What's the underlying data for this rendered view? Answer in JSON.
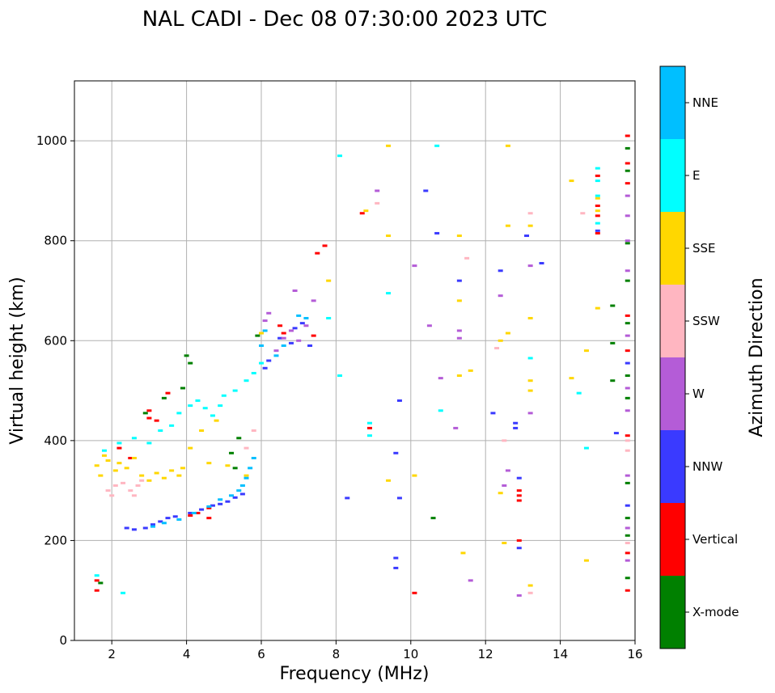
{
  "chart_data": {
    "type": "scatter",
    "title": "NAL CADI - Dec 08 07:30:00 2023 UTC",
    "xlabel": "Frequency (MHz)",
    "ylabel": "Virtual height (km)",
    "xlim": [
      1,
      16
    ],
    "ylim": [
      0,
      1120
    ],
    "xticks": [
      2,
      4,
      6,
      8,
      10,
      12,
      14,
      16
    ],
    "yticks": [
      0,
      200,
      400,
      600,
      800,
      1000
    ],
    "grid": true,
    "colorbar": {
      "label": "Azimuth Direction",
      "categories": [
        "X-mode",
        "Vertical",
        "NNW",
        "W",
        "SSW",
        "SSE",
        "E",
        "NNE"
      ],
      "colors": [
        "#008000",
        "#ff0000",
        "#3a3aff",
        "#b45cd7",
        "#ffb6c1",
        "#ffd700",
        "#00ffff",
        "#00bfff"
      ]
    },
    "series": [
      {
        "name": "X-mode",
        "points": [
          [
            4.0,
            570
          ],
          [
            4.1,
            555
          ],
          [
            3.9,
            505
          ],
          [
            3.4,
            485
          ],
          [
            2.9,
            455
          ],
          [
            5.4,
            405
          ],
          [
            5.2,
            375
          ],
          [
            5.3,
            345
          ],
          [
            1.7,
            115
          ],
          [
            5.9,
            610
          ],
          [
            15.8,
            985
          ],
          [
            15.8,
            940
          ],
          [
            15.8,
            795
          ],
          [
            15.8,
            720
          ],
          [
            15.8,
            635
          ],
          [
            15.8,
            530
          ],
          [
            15.8,
            485
          ],
          [
            15.8,
            315
          ],
          [
            15.8,
            245
          ],
          [
            15.8,
            210
          ],
          [
            15.8,
            125
          ],
          [
            15.4,
            670
          ],
          [
            15.4,
            595
          ],
          [
            15.4,
            520
          ],
          [
            10.6,
            245
          ]
        ]
      },
      {
        "name": "Vertical",
        "points": [
          [
            3.0,
            460
          ],
          [
            3.0,
            445
          ],
          [
            2.5,
            365
          ],
          [
            2.2,
            385
          ],
          [
            3.2,
            440
          ],
          [
            3.5,
            495
          ],
          [
            4.6,
            265
          ],
          [
            4.6,
            245
          ],
          [
            4.3,
            255
          ],
          [
            4.1,
            250
          ],
          [
            6.5,
            630
          ],
          [
            6.6,
            615
          ],
          [
            7.4,
            610
          ],
          [
            7.7,
            790
          ],
          [
            7.5,
            775
          ],
          [
            8.7,
            855
          ],
          [
            8.9,
            425
          ],
          [
            10.1,
            95
          ],
          [
            12.9,
            300
          ],
          [
            12.9,
            290
          ],
          [
            12.9,
            280
          ],
          [
            12.9,
            200
          ],
          [
            15.0,
            815
          ],
          [
            15.0,
            850
          ],
          [
            15.0,
            870
          ],
          [
            15.0,
            930
          ],
          [
            15.8,
            1010
          ],
          [
            15.8,
            955
          ],
          [
            15.8,
            915
          ],
          [
            15.8,
            650
          ],
          [
            15.8,
            580
          ],
          [
            15.8,
            410
          ],
          [
            15.8,
            175
          ],
          [
            15.8,
            100
          ],
          [
            1.6,
            100
          ],
          [
            1.6,
            120
          ]
        ]
      },
      {
        "name": "NNW",
        "points": [
          [
            2.4,
            225
          ],
          [
            2.6,
            222
          ],
          [
            2.9,
            225
          ],
          [
            3.1,
            232
          ],
          [
            3.3,
            238
          ],
          [
            3.5,
            245
          ],
          [
            3.7,
            248
          ],
          [
            4.1,
            255
          ],
          [
            4.4,
            262
          ],
          [
            4.7,
            270
          ],
          [
            4.9,
            273
          ],
          [
            5.1,
            278
          ],
          [
            5.3,
            286
          ],
          [
            5.5,
            293
          ],
          [
            6.1,
            545
          ],
          [
            6.2,
            560
          ],
          [
            6.5,
            605
          ],
          [
            6.8,
            595
          ],
          [
            6.9,
            625
          ],
          [
            7.1,
            635
          ],
          [
            7.3,
            590
          ],
          [
            8.3,
            285
          ],
          [
            9.7,
            285
          ],
          [
            9.7,
            480
          ],
          [
            9.6,
            375
          ],
          [
            9.6,
            165
          ],
          [
            9.6,
            145
          ],
          [
            10.4,
            900
          ],
          [
            10.7,
            815
          ],
          [
            11.3,
            720
          ],
          [
            12.2,
            455
          ],
          [
            12.4,
            740
          ],
          [
            12.8,
            425
          ],
          [
            12.8,
            435
          ],
          [
            12.9,
            325
          ],
          [
            12.9,
            185
          ],
          [
            13.1,
            810
          ],
          [
            13.5,
            755
          ],
          [
            15.0,
            820
          ],
          [
            15.5,
            415
          ],
          [
            15.8,
            555
          ],
          [
            15.8,
            270
          ]
        ]
      },
      {
        "name": "W",
        "points": [
          [
            6.1,
            640
          ],
          [
            6.2,
            655
          ],
          [
            6.4,
            580
          ],
          [
            6.6,
            605
          ],
          [
            6.8,
            620
          ],
          [
            7.0,
            600
          ],
          [
            7.2,
            630
          ],
          [
            7.4,
            680
          ],
          [
            6.9,
            700
          ],
          [
            9.1,
            900
          ],
          [
            10.1,
            750
          ],
          [
            10.5,
            630
          ],
          [
            10.8,
            525
          ],
          [
            11.2,
            425
          ],
          [
            11.3,
            620
          ],
          [
            11.3,
            605
          ],
          [
            11.6,
            120
          ],
          [
            12.4,
            690
          ],
          [
            12.5,
            310
          ],
          [
            12.6,
            340
          ],
          [
            13.2,
            455
          ],
          [
            13.2,
            750
          ],
          [
            12.9,
            90
          ],
          [
            15.8,
            890
          ],
          [
            15.8,
            850
          ],
          [
            15.8,
            800
          ],
          [
            15.8,
            740
          ],
          [
            15.8,
            610
          ],
          [
            15.8,
            505
          ],
          [
            15.8,
            460
          ],
          [
            15.8,
            330
          ],
          [
            15.8,
            225
          ],
          [
            15.8,
            160
          ]
        ]
      },
      {
        "name": "SSW",
        "points": [
          [
            1.9,
            300
          ],
          [
            2.0,
            290
          ],
          [
            2.1,
            310
          ],
          [
            2.3,
            315
          ],
          [
            2.5,
            300
          ],
          [
            2.7,
            310
          ],
          [
            2.8,
            320
          ],
          [
            2.6,
            290
          ],
          [
            5.6,
            385
          ],
          [
            5.8,
            420
          ],
          [
            9.1,
            875
          ],
          [
            11.5,
            765
          ],
          [
            12.3,
            585
          ],
          [
            12.5,
            400
          ],
          [
            13.2,
            855
          ],
          [
            13.2,
            95
          ],
          [
            14.6,
            855
          ],
          [
            15.8,
            400
          ],
          [
            15.8,
            380
          ],
          [
            15.8,
            195
          ]
        ]
      },
      {
        "name": "SSE",
        "points": [
          [
            1.6,
            350
          ],
          [
            1.7,
            330
          ],
          [
            1.8,
            370
          ],
          [
            1.9,
            360
          ],
          [
            2.1,
            340
          ],
          [
            2.2,
            355
          ],
          [
            2.4,
            345
          ],
          [
            2.6,
            365
          ],
          [
            2.8,
            330
          ],
          [
            3.0,
            320
          ],
          [
            3.2,
            335
          ],
          [
            3.4,
            325
          ],
          [
            3.6,
            340
          ],
          [
            3.8,
            330
          ],
          [
            3.9,
            345
          ],
          [
            4.1,
            385
          ],
          [
            4.4,
            420
          ],
          [
            4.6,
            355
          ],
          [
            4.8,
            440
          ],
          [
            5.1,
            350
          ],
          [
            5.6,
            330
          ],
          [
            6.0,
            615
          ],
          [
            7.8,
            720
          ],
          [
            8.8,
            860
          ],
          [
            9.4,
            990
          ],
          [
            9.4,
            810
          ],
          [
            9.4,
            320
          ],
          [
            10.1,
            330
          ],
          [
            11.3,
            810
          ],
          [
            11.3,
            680
          ],
          [
            11.3,
            530
          ],
          [
            11.4,
            175
          ],
          [
            11.6,
            540
          ],
          [
            12.4,
            600
          ],
          [
            12.6,
            615
          ],
          [
            12.6,
            830
          ],
          [
            12.6,
            990
          ],
          [
            13.2,
            830
          ],
          [
            13.2,
            645
          ],
          [
            13.2,
            520
          ],
          [
            13.2,
            500
          ],
          [
            13.2,
            110
          ],
          [
            14.3,
            920
          ],
          [
            14.3,
            525
          ],
          [
            14.7,
            580
          ],
          [
            14.7,
            160
          ],
          [
            15.0,
            665
          ],
          [
            15.0,
            860
          ],
          [
            15.0,
            885
          ],
          [
            12.5,
            195
          ],
          [
            12.4,
            295
          ]
        ]
      },
      {
        "name": "E",
        "points": [
          [
            1.8,
            380
          ],
          [
            2.2,
            395
          ],
          [
            2.6,
            405
          ],
          [
            3.0,
            395
          ],
          [
            3.3,
            420
          ],
          [
            3.6,
            430
          ],
          [
            3.8,
            455
          ],
          [
            4.1,
            470
          ],
          [
            4.3,
            480
          ],
          [
            4.5,
            465
          ],
          [
            4.7,
            450
          ],
          [
            4.9,
            470
          ],
          [
            5.0,
            490
          ],
          [
            5.3,
            500
          ],
          [
            5.6,
            520
          ],
          [
            5.8,
            535
          ],
          [
            6.0,
            555
          ],
          [
            2.3,
            95
          ],
          [
            1.6,
            130
          ],
          [
            8.1,
            970
          ],
          [
            8.1,
            530
          ],
          [
            8.9,
            435
          ],
          [
            8.9,
            410
          ],
          [
            9.4,
            695
          ],
          [
            10.7,
            990
          ],
          [
            10.8,
            460
          ],
          [
            13.2,
            565
          ],
          [
            14.5,
            495
          ],
          [
            14.7,
            385
          ],
          [
            15.0,
            890
          ],
          [
            15.0,
            920
          ],
          [
            15.0,
            835
          ],
          [
            15.0,
            945
          ],
          [
            7.8,
            645
          ]
        ]
      },
      {
        "name": "NNE",
        "points": [
          [
            3.1,
            228
          ],
          [
            3.4,
            235
          ],
          [
            3.8,
            242
          ],
          [
            4.2,
            255
          ],
          [
            4.6,
            268
          ],
          [
            4.9,
            282
          ],
          [
            5.2,
            290
          ],
          [
            5.4,
            300
          ],
          [
            5.5,
            310
          ],
          [
            5.6,
            325
          ],
          [
            5.7,
            345
          ],
          [
            5.8,
            365
          ],
          [
            6.0,
            590
          ],
          [
            6.1,
            620
          ],
          [
            6.4,
            570
          ],
          [
            6.6,
            590
          ],
          [
            7.0,
            650
          ],
          [
            7.2,
            645
          ]
        ]
      }
    ]
  }
}
